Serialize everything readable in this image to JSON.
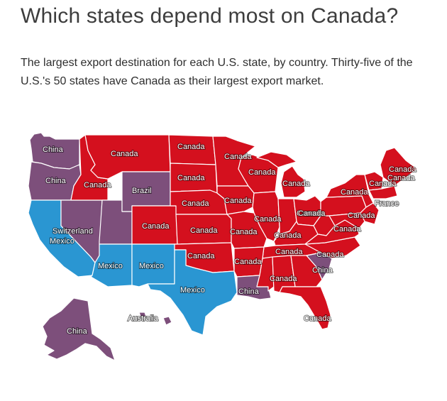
{
  "header": {
    "title": "Which states depend most on Canada?",
    "subtitle": "The largest export destination for each U.S. state, by country. Thirty-five of the U.S.'s 50 states have Canada as their largest export market."
  },
  "colors": {
    "canada": "#d4101e",
    "china": "#7d4f7b",
    "mexico": "#2a96d2",
    "other": "#7d4f7b"
  },
  "map": {
    "labels": {
      "wa": "China",
      "or": "China",
      "ca": "Switzerland",
      "ca2": "Mexico",
      "mt": "Canada",
      "id": "Canada",
      "wy": "Brazil",
      "nd": "Canada",
      "sd": "Canada",
      "mn": "Canada",
      "wi": "Canada",
      "mi": "Canada",
      "ne": "Canada",
      "ia": "Canada",
      "co": "Canada",
      "ks": "Canada",
      "mo": "Canada",
      "il": "Canada",
      "in": "Canada",
      "oh": "Canada",
      "ky": "Canada",
      "tn": "Canada",
      "nc": "Canada",
      "sc": "China",
      "ok": "Canada",
      "ar": "Canada",
      "ms": "Canada",
      "al": "Canada",
      "la": "China",
      "az": "Mexico",
      "nm": "Mexico",
      "tx": "Mexico",
      "fl": "Canada",
      "ny": "Canada",
      "pa": "Canada",
      "wv": "Canada",
      "va": "Canada",
      "vt": "Canada",
      "me": "Canada",
      "nh": "Canada",
      "nj": "France",
      "ak": "China",
      "hi": "Australia"
    }
  }
}
